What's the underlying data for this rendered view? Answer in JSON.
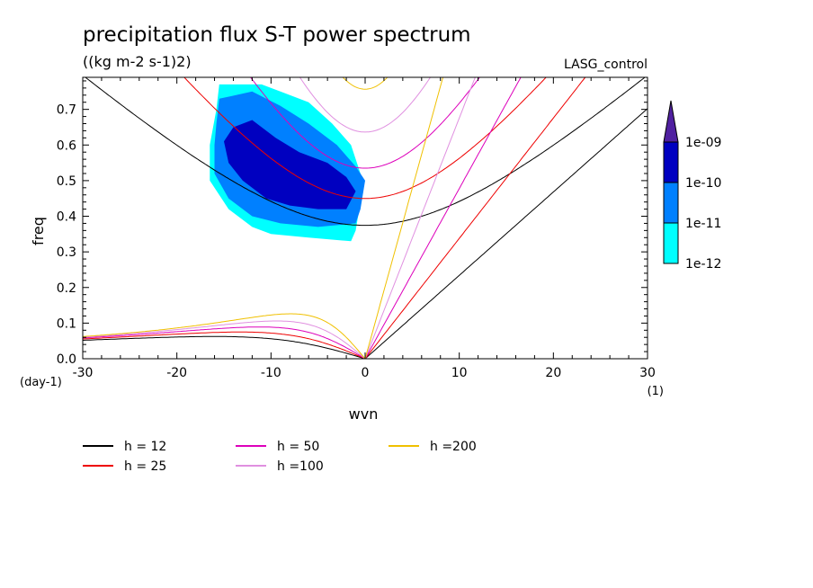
{
  "chart_data": {
    "type": "line",
    "title": "precipitation flux S-T power spectrum",
    "subtitle": "((kg m-2 s-1)2)",
    "run_label": "LASG_control",
    "xlabel": "wvn",
    "ylabel": "freq",
    "x_unit": "(1)",
    "y_unit": "(day-1)",
    "xlim": [
      -30,
      30
    ],
    "ylim": [
      0,
      0.79
    ],
    "x_ticks": [
      -30,
      -20,
      -10,
      0,
      10,
      20,
      30
    ],
    "x_tick_labels": [
      "-30",
      "-20",
      "-10",
      "0",
      "10",
      "20",
      "30"
    ],
    "y_ticks": [
      0.0,
      0.1,
      0.2,
      0.3,
      0.4,
      0.5,
      0.6,
      0.7
    ],
    "y_tick_labels": [
      "0.0",
      "0.1",
      "0.2",
      "0.3",
      "0.4",
      "0.5",
      "0.6",
      "0.7"
    ],
    "grid": false,
    "legend_position": "bottom-left",
    "series": [
      {
        "name": "h = 12",
        "h": 12,
        "color": "#000000"
      },
      {
        "name": "h = 25",
        "h": 25,
        "color": "#ee0000"
      },
      {
        "name": "h = 50",
        "h": 50,
        "color": "#dd00bb"
      },
      {
        "name": "h =100",
        "h": 100,
        "color": "#e090e0"
      },
      {
        "name": "h =200",
        "h": 200,
        "color": "#f0c000"
      }
    ],
    "colorbar": {
      "levels": [
        "1e-12",
        "1e-11",
        "1e-10",
        "1e-09"
      ],
      "colors": [
        "#00ffff",
        "#0080ff",
        "#0000c0",
        "#5020a0"
      ]
    },
    "power_contours": [
      {
        "level": "1e-12",
        "color": "#00ffff",
        "points": [
          [
            -15.5,
            0.77
          ],
          [
            -11,
            0.77
          ],
          [
            -9,
            0.75
          ],
          [
            -6,
            0.72
          ],
          [
            -3.5,
            0.66
          ],
          [
            -1.5,
            0.6
          ],
          [
            -0.5,
            0.52
          ],
          [
            -0.5,
            0.44
          ],
          [
            -1,
            0.36
          ],
          [
            -1.5,
            0.33
          ],
          [
            -6,
            0.34
          ],
          [
            -10,
            0.35
          ],
          [
            -12,
            0.37
          ],
          [
            -14.5,
            0.42
          ],
          [
            -16.5,
            0.5
          ],
          [
            -16.5,
            0.6
          ],
          [
            -15.8,
            0.7
          ]
        ]
      },
      {
        "level": "1e-11",
        "color": "#0080ff",
        "points": [
          [
            -15.5,
            0.73
          ],
          [
            -12,
            0.75
          ],
          [
            -9,
            0.71
          ],
          [
            -6,
            0.66
          ],
          [
            -3,
            0.6
          ],
          [
            -1,
            0.54
          ],
          [
            0,
            0.5
          ],
          [
            -0.5,
            0.42
          ],
          [
            -1,
            0.38
          ],
          [
            -5,
            0.37
          ],
          [
            -9,
            0.38
          ],
          [
            -12,
            0.4
          ],
          [
            -14.5,
            0.45
          ],
          [
            -16,
            0.52
          ],
          [
            -16,
            0.6
          ],
          [
            -15.8,
            0.66
          ]
        ]
      },
      {
        "level": "1e-10",
        "color": "#0000c0",
        "points": [
          [
            -14,
            0.65
          ],
          [
            -12,
            0.67
          ],
          [
            -9.5,
            0.62
          ],
          [
            -7,
            0.58
          ],
          [
            -4,
            0.55
          ],
          [
            -2,
            0.51
          ],
          [
            -1,
            0.47
          ],
          [
            -2,
            0.42
          ],
          [
            -5,
            0.42
          ],
          [
            -8,
            0.43
          ],
          [
            -10.5,
            0.45
          ],
          [
            -13,
            0.5
          ],
          [
            -14.5,
            0.55
          ],
          [
            -15,
            0.61
          ]
        ]
      }
    ]
  }
}
